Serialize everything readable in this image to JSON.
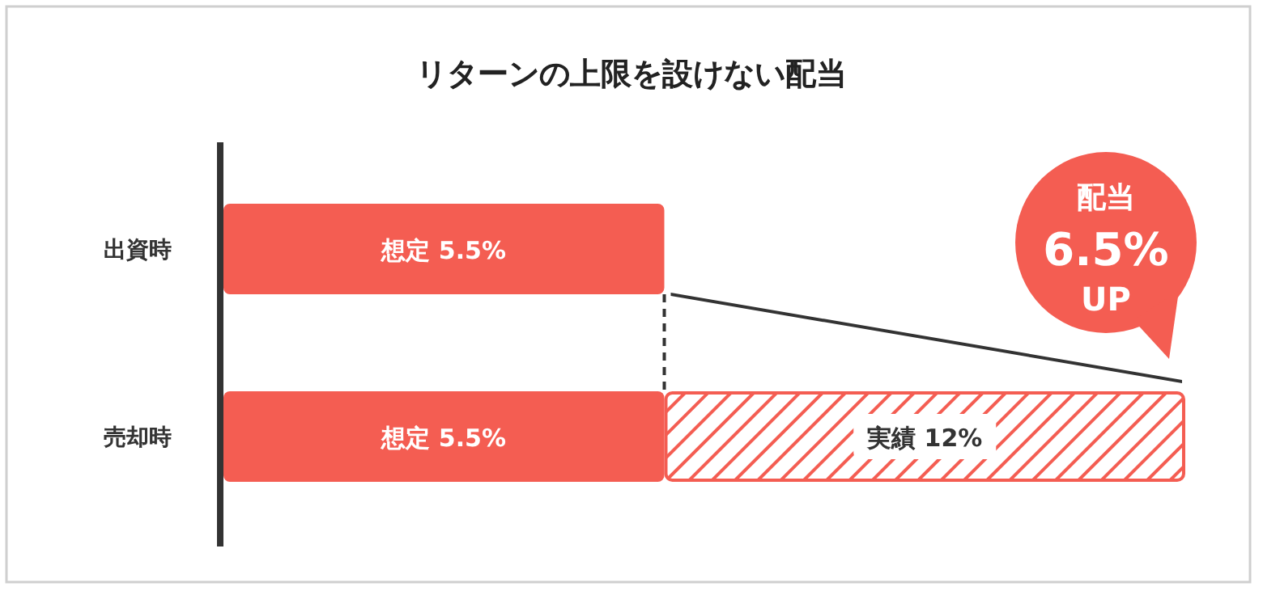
{
  "chart_data": {
    "type": "bar",
    "orientation": "horizontal",
    "stacked": true,
    "title": "リターンの上限を設けない配当",
    "categories": [
      "出資時",
      "売却時"
    ],
    "series": [
      {
        "color": "#f45d52",
        "values": [
          5.5,
          5.5
        ],
        "value_labels": [
          "想定 5.5%",
          "想定 5.5%"
        ]
      },
      {
        "color": "#f45d52",
        "values": [
          null,
          6.5
        ],
        "value_labels": [
          null,
          "実績 12%"
        ]
      }
    ],
    "annotations": [
      "配当 6.5% UP"
    ]
  }
}
